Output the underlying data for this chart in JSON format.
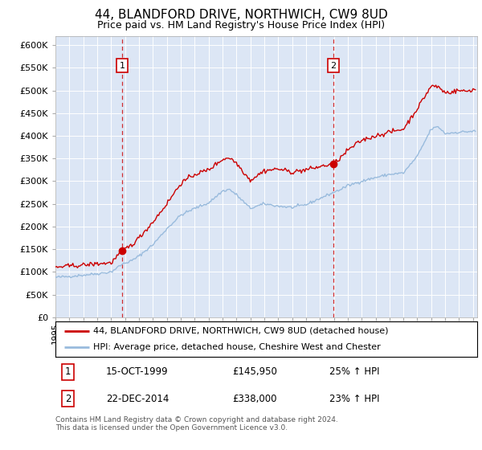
{
  "title": "44, BLANDFORD DRIVE, NORTHWICH, CW9 8UD",
  "subtitle": "Price paid vs. HM Land Registry's House Price Index (HPI)",
  "ylim": [
    0,
    620000
  ],
  "xlim": [
    1995,
    2025.3
  ],
  "plot_bg": "#dce6f5",
  "red_color": "#cc0000",
  "blue_color": "#99bbdd",
  "sale1_date": 1999.79,
  "sale1_price": 145950,
  "sale2_date": 2014.97,
  "sale2_price": 338000,
  "legend_line1": "44, BLANDFORD DRIVE, NORTHWICH, CW9 8UD (detached house)",
  "legend_line2": "HPI: Average price, detached house, Cheshire West and Chester",
  "note1_label": "1",
  "note1_date": "15-OCT-1999",
  "note1_price": "£145,950",
  "note1_hpi": "25% ↑ HPI",
  "note2_label": "2",
  "note2_date": "22-DEC-2014",
  "note2_price": "£338,000",
  "note2_hpi": "23% ↑ HPI",
  "footer": "Contains HM Land Registry data © Crown copyright and database right 2024.\nThis data is licensed under the Open Government Licence v3.0."
}
